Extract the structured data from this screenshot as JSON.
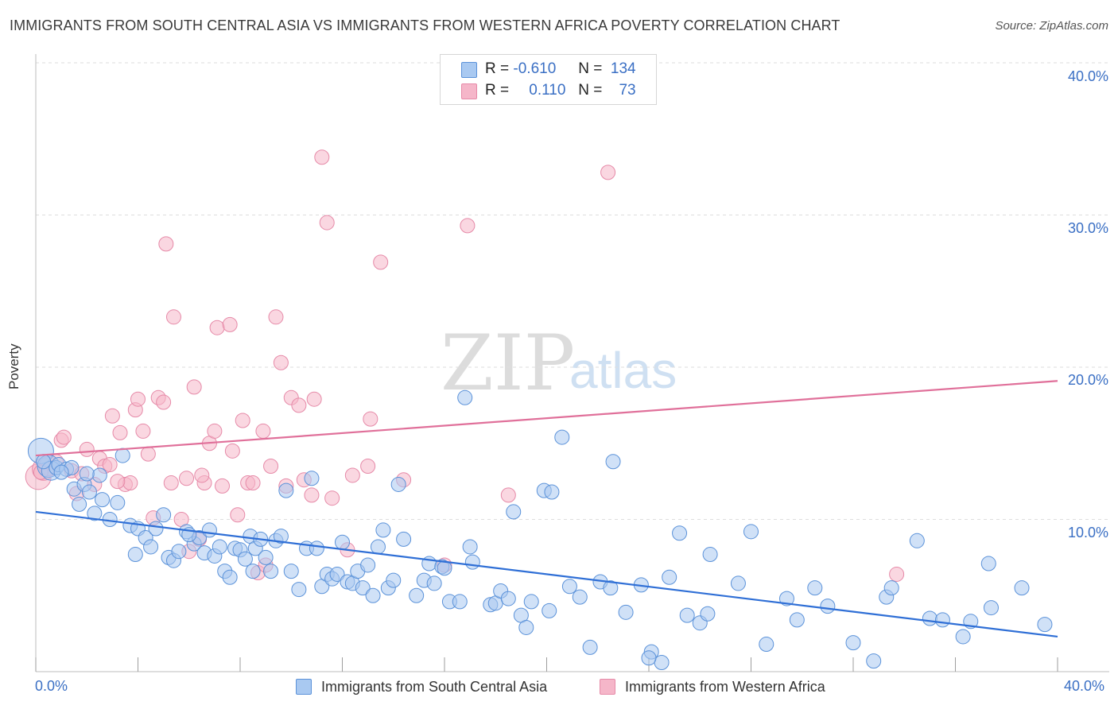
{
  "title": "IMMIGRANTS FROM SOUTH CENTRAL ASIA VS IMMIGRANTS FROM WESTERN AFRICA POVERTY CORRELATION CHART",
  "source": "Source: ZipAtlas.com",
  "watermark": {
    "zip": "ZIP",
    "atlas": "atlas"
  },
  "legend_top": {
    "rows": [
      {
        "r_label": "R =",
        "r_value": "-0.610",
        "n_label": "N =",
        "n_value": "134",
        "color": "#a9c9f1"
      },
      {
        "r_label": "R =",
        "r_value": "0.110",
        "n_label": "N =",
        "n_value": "73",
        "color": "#f5b6c9"
      }
    ]
  },
  "legend_bottom": {
    "items": [
      {
        "label": "Immigrants from South Central Asia",
        "color": "#a9c9f1"
      },
      {
        "label": "Immigrants from Western Africa",
        "color": "#f5b6c9"
      }
    ]
  },
  "axes": {
    "ylabel": "Poverty",
    "yticks": [
      "40.0%",
      "30.0%",
      "20.0%",
      "10.0%"
    ],
    "xticks": [
      "0.0%",
      "40.0%"
    ]
  },
  "colors": {
    "blue_fill": "#a9c9f1",
    "blue_stroke": "#5b92d9",
    "blue_line": "#2f6fd6",
    "pink_fill": "#f5b6c9",
    "pink_stroke": "#e68aa8",
    "pink_line": "#e0709a",
    "tick_text": "#3a6fc4",
    "grid": "#dedede"
  },
  "chart_data": {
    "type": "scatter",
    "title": "IMMIGRANTS FROM SOUTH CENTRAL ASIA VS IMMIGRANTS FROM WESTERN AFRICA POVERTY CORRELATION CHART",
    "xlabel": "",
    "ylabel": "Poverty",
    "xlim": [
      0,
      40
    ],
    "ylim": [
      0,
      40
    ],
    "x_ticks": [
      0,
      40
    ],
    "y_ticks": [
      10,
      20,
      30,
      40
    ],
    "grid": "horizontal dashed",
    "legend_position": "top-center",
    "series": [
      {
        "name": "Immigrants from South Central Asia",
        "r": -0.61,
        "n": 134,
        "trend": {
          "x": [
            0,
            40
          ],
          "y": [
            10.5,
            2.3
          ]
        },
        "points": [
          [
            0.2,
            14.5
          ],
          [
            0.5,
            13.5
          ],
          [
            0.6,
            13.2
          ],
          [
            0.8,
            13.4
          ],
          [
            0.9,
            13.6
          ],
          [
            1.2,
            13.3
          ],
          [
            1.4,
            13.4
          ],
          [
            1.5,
            12.0
          ],
          [
            1.7,
            11.0
          ],
          [
            1.9,
            12.3
          ],
          [
            2.1,
            11.8
          ],
          [
            2.3,
            10.4
          ],
          [
            2.5,
            12.9
          ],
          [
            2.6,
            11.3
          ],
          [
            2.9,
            10.0
          ],
          [
            3.2,
            11.1
          ],
          [
            3.4,
            14.2
          ],
          [
            3.7,
            9.6
          ],
          [
            3.9,
            7.7
          ],
          [
            4.0,
            9.4
          ],
          [
            4.3,
            8.8
          ],
          [
            4.5,
            8.2
          ],
          [
            4.7,
            9.4
          ],
          [
            5.0,
            10.3
          ],
          [
            5.2,
            7.5
          ],
          [
            5.4,
            7.3
          ],
          [
            5.6,
            7.9
          ],
          [
            5.9,
            9.2
          ],
          [
            6.2,
            8.4
          ],
          [
            6.4,
            8.8
          ],
          [
            6.6,
            7.8
          ],
          [
            6.8,
            9.3
          ],
          [
            7.0,
            7.6
          ],
          [
            7.2,
            8.2
          ],
          [
            7.4,
            6.6
          ],
          [
            7.6,
            6.2
          ],
          [
            7.8,
            8.1
          ],
          [
            8.0,
            8.0
          ],
          [
            8.2,
            7.4
          ],
          [
            8.4,
            8.9
          ],
          [
            8.6,
            8.1
          ],
          [
            8.8,
            8.7
          ],
          [
            9.0,
            7.5
          ],
          [
            9.2,
            6.6
          ],
          [
            9.4,
            8.6
          ],
          [
            9.6,
            8.9
          ],
          [
            9.8,
            11.9
          ],
          [
            10.0,
            6.6
          ],
          [
            10.3,
            5.4
          ],
          [
            10.6,
            8.1
          ],
          [
            10.8,
            12.7
          ],
          [
            11.0,
            8.1
          ],
          [
            11.2,
            5.6
          ],
          [
            11.4,
            6.4
          ],
          [
            11.6,
            6.1
          ],
          [
            11.8,
            6.4
          ],
          [
            12.0,
            8.5
          ],
          [
            12.2,
            5.9
          ],
          [
            12.4,
            5.8
          ],
          [
            12.6,
            6.6
          ],
          [
            12.8,
            5.5
          ],
          [
            13.0,
            7.0
          ],
          [
            13.2,
            5.0
          ],
          [
            13.4,
            8.2
          ],
          [
            13.6,
            9.3
          ],
          [
            13.8,
            5.5
          ],
          [
            14.0,
            6.0
          ],
          [
            14.2,
            12.3
          ],
          [
            14.4,
            8.7
          ],
          [
            14.9,
            5.0
          ],
          [
            15.2,
            6.0
          ],
          [
            15.4,
            7.1
          ],
          [
            15.6,
            5.8
          ],
          [
            15.9,
            6.9
          ],
          [
            16.2,
            4.6
          ],
          [
            16.6,
            4.6
          ],
          [
            17.0,
            8.2
          ],
          [
            17.1,
            7.2
          ],
          [
            16.8,
            18.0
          ],
          [
            17.8,
            4.4
          ],
          [
            18.0,
            4.5
          ],
          [
            18.2,
            5.3
          ],
          [
            18.5,
            4.8
          ],
          [
            18.7,
            10.5
          ],
          [
            19.0,
            3.7
          ],
          [
            19.2,
            2.9
          ],
          [
            19.4,
            4.6
          ],
          [
            19.9,
            11.9
          ],
          [
            20.2,
            11.8
          ],
          [
            20.6,
            15.4
          ],
          [
            20.1,
            4.0
          ],
          [
            20.9,
            5.6
          ],
          [
            21.3,
            4.9
          ],
          [
            21.7,
            1.6
          ],
          [
            22.1,
            5.9
          ],
          [
            22.5,
            5.5
          ],
          [
            22.6,
            13.8
          ],
          [
            23.1,
            3.9
          ],
          [
            23.7,
            5.7
          ],
          [
            24.1,
            1.3
          ],
          [
            24.5,
            0.6
          ],
          [
            24.8,
            6.2
          ],
          [
            25.2,
            9.1
          ],
          [
            25.5,
            3.7
          ],
          [
            26.0,
            3.2
          ],
          [
            26.3,
            3.8
          ],
          [
            26.4,
            7.7
          ],
          [
            27.5,
            5.8
          ],
          [
            28.0,
            9.2
          ],
          [
            28.6,
            1.8
          ],
          [
            29.4,
            4.8
          ],
          [
            29.8,
            3.4
          ],
          [
            30.5,
            5.5
          ],
          [
            31.0,
            4.3
          ],
          [
            32.0,
            1.9
          ],
          [
            32.8,
            0.7
          ],
          [
            33.3,
            4.9
          ],
          [
            33.5,
            5.5
          ],
          [
            34.5,
            8.6
          ],
          [
            35.0,
            3.5
          ],
          [
            35.5,
            3.4
          ],
          [
            36.3,
            2.3
          ],
          [
            36.6,
            3.3
          ],
          [
            37.3,
            7.1
          ],
          [
            37.4,
            4.2
          ],
          [
            38.6,
            5.5
          ],
          [
            39.5,
            3.1
          ],
          [
            0.3,
            13.8
          ],
          [
            1.0,
            13.1
          ],
          [
            2.0,
            13.0
          ],
          [
            6.0,
            9.0
          ],
          [
            16.0,
            6.8
          ],
          [
            24.0,
            0.9
          ],
          [
            8.5,
            6.6
          ]
        ]
      },
      {
        "name": "Immigrants from Western Africa",
        "r": 0.11,
        "n": 73,
        "trend": {
          "x": [
            0,
            40
          ],
          "y": [
            14.2,
            19.1
          ]
        },
        "points": [
          [
            0.1,
            12.8
          ],
          [
            0.3,
            13.3
          ],
          [
            0.5,
            13.5
          ],
          [
            0.8,
            13.8
          ],
          [
            1.0,
            15.2
          ],
          [
            1.1,
            15.4
          ],
          [
            1.4,
            13.2
          ],
          [
            1.6,
            11.7
          ],
          [
            1.8,
            13.0
          ],
          [
            2.0,
            14.6
          ],
          [
            2.3,
            12.3
          ],
          [
            2.5,
            14.0
          ],
          [
            2.7,
            13.5
          ],
          [
            2.9,
            13.6
          ],
          [
            3.0,
            16.8
          ],
          [
            3.3,
            15.7
          ],
          [
            3.5,
            12.3
          ],
          [
            3.7,
            12.4
          ],
          [
            3.9,
            17.2
          ],
          [
            4.0,
            17.9
          ],
          [
            4.2,
            15.8
          ],
          [
            4.4,
            14.3
          ],
          [
            4.6,
            10.1
          ],
          [
            4.8,
            18.0
          ],
          [
            5.0,
            17.7
          ],
          [
            5.1,
            28.1
          ],
          [
            5.3,
            12.4
          ],
          [
            5.4,
            23.3
          ],
          [
            5.7,
            10.0
          ],
          [
            5.9,
            12.7
          ],
          [
            6.0,
            7.9
          ],
          [
            6.2,
            18.7
          ],
          [
            6.4,
            8.7
          ],
          [
            6.6,
            12.4
          ],
          [
            6.8,
            15.0
          ],
          [
            7.0,
            15.8
          ],
          [
            7.1,
            22.6
          ],
          [
            7.3,
            12.2
          ],
          [
            7.6,
            22.8
          ],
          [
            7.7,
            14.5
          ],
          [
            7.9,
            10.3
          ],
          [
            8.1,
            16.5
          ],
          [
            8.3,
            12.4
          ],
          [
            8.5,
            12.4
          ],
          [
            8.7,
            6.5
          ],
          [
            8.9,
            15.8
          ],
          [
            9.0,
            7.0
          ],
          [
            9.2,
            13.5
          ],
          [
            9.4,
            23.3
          ],
          [
            9.6,
            20.3
          ],
          [
            9.8,
            12.2
          ],
          [
            10.0,
            18.0
          ],
          [
            10.3,
            17.5
          ],
          [
            10.5,
            12.6
          ],
          [
            10.9,
            17.9
          ],
          [
            10.8,
            11.6
          ],
          [
            11.2,
            33.8
          ],
          [
            11.4,
            29.5
          ],
          [
            11.6,
            11.4
          ],
          [
            12.2,
            8.0
          ],
          [
            12.4,
            12.9
          ],
          [
            13.0,
            13.5
          ],
          [
            13.1,
            16.6
          ],
          [
            13.5,
            26.9
          ],
          [
            14.4,
            12.6
          ],
          [
            16.0,
            7.0
          ],
          [
            16.9,
            29.3
          ],
          [
            18.5,
            11.6
          ],
          [
            22.4,
            32.8
          ],
          [
            33.7,
            6.4
          ],
          [
            0.2,
            13.1
          ],
          [
            3.2,
            12.5
          ],
          [
            6.5,
            12.9
          ]
        ]
      }
    ]
  }
}
